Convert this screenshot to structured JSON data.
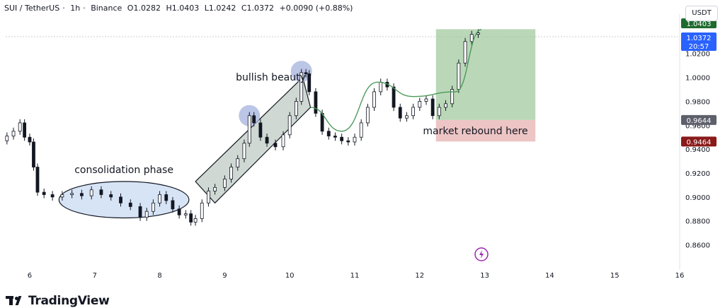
{
  "header": {
    "symbol": "SUI / TetherUS",
    "interval": "1h",
    "exchange": "Binance",
    "open": "O1.0282",
    "high": "H1.0403",
    "low": "L1.0242",
    "close": "C1.0372",
    "change": "+0.0090 (+0.88%)"
  },
  "currency_button": "USDT",
  "brand": "TradingView",
  "colors": {
    "up": "#089981",
    "down": "#f23645",
    "candle_render": "#131722",
    "rect_green": "#9cc79a",
    "rect_red": "#e8b7b7",
    "channel_fill": "#a7b8ad",
    "ellipse_fill": "#c6d9f2",
    "circle_fill": "#aab7de",
    "curve": "#4c9a5a",
    "price_tag_blue": "#2962ff",
    "price_tag_grey": "#5d606b",
    "price_tag_red": "#8b1a1a",
    "price_tag_green": "#1e6b2e"
  },
  "chart_data": {
    "type": "candlestick",
    "title": "",
    "y_axis": {
      "ticks": [
        "1.0200",
        "1.0000",
        "0.9800",
        "0.9600",
        "0.9400",
        "0.9200",
        "0.9000",
        "0.8800",
        "0.8600"
      ],
      "tick_values": [
        1.02,
        1.0,
        0.98,
        0.96,
        0.94,
        0.92,
        0.9,
        0.88,
        0.86
      ],
      "ylim": [
        0.845,
        1.047
      ]
    },
    "x_axis": {
      "ticks": [
        "6",
        "7",
        "8",
        "9",
        "10",
        "11",
        "12",
        "13",
        "14",
        "15",
        "16"
      ],
      "tick_values": [
        6,
        7,
        8,
        9,
        10,
        11,
        12,
        13,
        14,
        15,
        16
      ],
      "xlim": [
        5.63,
        16.0
      ]
    },
    "price_labels": [
      {
        "value": 1.0372,
        "label": "1.0372",
        "sub": "20:57",
        "kind": "last"
      },
      {
        "value": 1.0403,
        "label": "1.0403",
        "kind": "target"
      },
      {
        "value": 0.9644,
        "label": "0.9644",
        "kind": "entry"
      },
      {
        "value": 0.9464,
        "label": "0.9464",
        "kind": "stop"
      }
    ],
    "close_series": [
      {
        "x": 5.65,
        "c": 0.951
      },
      {
        "x": 5.75,
        "c": 0.955
      },
      {
        "x": 5.85,
        "c": 0.962
      },
      {
        "x": 5.92,
        "c": 0.95
      },
      {
        "x": 6.0,
        "c": 0.946
      },
      {
        "x": 6.06,
        "c": 0.925
      },
      {
        "x": 6.12,
        "c": 0.904
      },
      {
        "x": 6.22,
        "c": 0.902
      },
      {
        "x": 6.35,
        "c": 0.9
      },
      {
        "x": 6.5,
        "c": 0.902
      },
      {
        "x": 6.65,
        "c": 0.903
      },
      {
        "x": 6.8,
        "c": 0.901
      },
      {
        "x": 6.95,
        "c": 0.906
      },
      {
        "x": 7.1,
        "c": 0.902
      },
      {
        "x": 7.25,
        "c": 0.9
      },
      {
        "x": 7.4,
        "c": 0.895
      },
      {
        "x": 7.55,
        "c": 0.892
      },
      {
        "x": 7.7,
        "c": 0.883
      },
      {
        "x": 7.8,
        "c": 0.888
      },
      {
        "x": 7.9,
        "c": 0.895
      },
      {
        "x": 8.0,
        "c": 0.902
      },
      {
        "x": 8.1,
        "c": 0.897
      },
      {
        "x": 8.2,
        "c": 0.89
      },
      {
        "x": 8.3,
        "c": 0.885
      },
      {
        "x": 8.4,
        "c": 0.886
      },
      {
        "x": 8.48,
        "c": 0.879
      },
      {
        "x": 8.55,
        "c": 0.882
      },
      {
        "x": 8.65,
        "c": 0.895
      },
      {
        "x": 8.75,
        "c": 0.905
      },
      {
        "x": 8.85,
        "c": 0.908
      },
      {
        "x": 9.0,
        "c": 0.915
      },
      {
        "x": 9.1,
        "c": 0.925
      },
      {
        "x": 9.2,
        "c": 0.932
      },
      {
        "x": 9.3,
        "c": 0.945
      },
      {
        "x": 9.38,
        "c": 0.968
      },
      {
        "x": 9.45,
        "c": 0.962
      },
      {
        "x": 9.55,
        "c": 0.95
      },
      {
        "x": 9.65,
        "c": 0.945
      },
      {
        "x": 9.78,
        "c": 0.942
      },
      {
        "x": 9.9,
        "c": 0.952
      },
      {
        "x": 10.0,
        "c": 0.968
      },
      {
        "x": 10.1,
        "c": 0.98
      },
      {
        "x": 10.18,
        "c": 1.004
      },
      {
        "x": 10.25,
        "c": 1.003
      },
      {
        "x": 10.3,
        "c": 0.988
      },
      {
        "x": 10.4,
        "c": 0.97
      },
      {
        "x": 10.5,
        "c": 0.955
      },
      {
        "x": 10.6,
        "c": 0.951
      },
      {
        "x": 10.7,
        "c": 0.95
      },
      {
        "x": 10.8,
        "c": 0.947
      },
      {
        "x": 10.9,
        "c": 0.946
      },
      {
        "x": 11.0,
        "c": 0.95
      },
      {
        "x": 11.1,
        "c": 0.962
      },
      {
        "x": 11.2,
        "c": 0.975
      },
      {
        "x": 11.3,
        "c": 0.988
      },
      {
        "x": 11.4,
        "c": 0.996
      },
      {
        "x": 11.5,
        "c": 0.992
      },
      {
        "x": 11.6,
        "c": 0.975
      },
      {
        "x": 11.7,
        "c": 0.966
      },
      {
        "x": 11.8,
        "c": 0.968
      },
      {
        "x": 11.9,
        "c": 0.975
      },
      {
        "x": 12.0,
        "c": 0.98
      },
      {
        "x": 12.1,
        "c": 0.982
      },
      {
        "x": 12.2,
        "c": 0.968
      },
      {
        "x": 12.3,
        "c": 0.975
      },
      {
        "x": 12.4,
        "c": 0.978
      },
      {
        "x": 12.5,
        "c": 0.99
      },
      {
        "x": 12.6,
        "c": 1.012
      },
      {
        "x": 12.7,
        "c": 1.03
      },
      {
        "x": 12.8,
        "c": 1.036
      },
      {
        "x": 12.9,
        "c": 1.0372
      }
    ],
    "annotations": [
      {
        "id": "consolidation",
        "kind": "ellipse",
        "label": "consolidation phase",
        "x": [
          6.45,
          8.45
        ],
        "y": [
          0.8825,
          0.913
        ]
      },
      {
        "id": "channel",
        "kind": "parallel_channel",
        "label": "bullish beauty",
        "corners": [
          [
            8.55,
            0.913
          ],
          [
            10.2,
            1.0
          ],
          [
            10.32,
            0.975
          ],
          [
            8.85,
            0.895
          ]
        ]
      },
      {
        "id": "circle1",
        "kind": "circle",
        "x": 9.38,
        "y": 0.968
      },
      {
        "id": "circle2",
        "kind": "circle",
        "x": 10.18,
        "y": 1.005
      },
      {
        "id": "curve",
        "kind": "curve",
        "points": [
          [
            10.32,
            0.975
          ],
          [
            10.8,
            0.955
          ],
          [
            11.35,
            0.996
          ],
          [
            11.9,
            0.984
          ],
          [
            12.55,
            0.988
          ],
          [
            12.95,
            1.04
          ]
        ]
      },
      {
        "id": "target_box",
        "kind": "rect",
        "x": [
          12.25,
          13.78
        ],
        "y": [
          0.9644,
          1.0403
        ]
      },
      {
        "id": "stop_box",
        "kind": "rect",
        "x": [
          12.25,
          13.78
        ],
        "y": [
          0.9464,
          0.9644
        ]
      },
      {
        "id": "rebound",
        "kind": "text",
        "label": "market rebound here",
        "x": 12.05,
        "y": 0.955
      }
    ]
  }
}
